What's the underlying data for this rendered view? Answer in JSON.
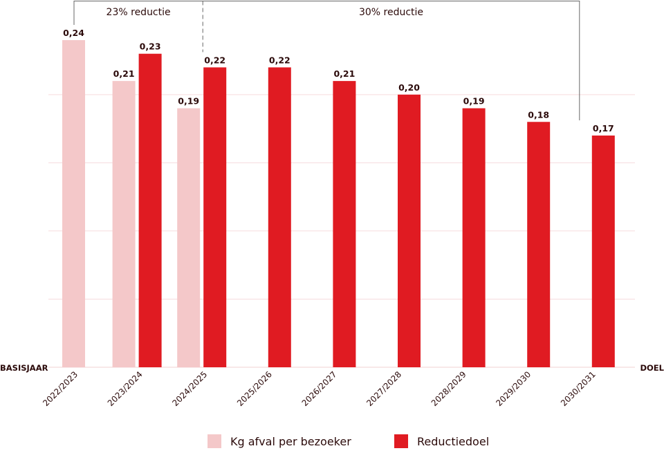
{
  "chart_data": {
    "type": "bar",
    "categories": [
      "2022/2023",
      "2023/2024",
      "2024/2025",
      "2025/2026",
      "2026/2027",
      "2027/2028",
      "2028/2029",
      "2029/2030",
      "2030/2031"
    ],
    "series": [
      {
        "name": "Kg afval per bezoeker",
        "color": "#f4c8c9",
        "values": [
          0.24,
          0.21,
          0.19,
          null,
          null,
          null,
          null,
          null,
          null
        ],
        "labels": [
          "0,24",
          "0,21",
          "0,19",
          "",
          "",
          "",
          "",
          "",
          ""
        ]
      },
      {
        "name": "Reductiedoel",
        "color": "#e01b22",
        "values": [
          null,
          0.23,
          0.22,
          0.22,
          0.21,
          0.2,
          0.19,
          0.18,
          0.17
        ],
        "labels": [
          "",
          "0,23",
          "0,22",
          "0,22",
          "0,21",
          "0,20",
          "0,19",
          "0,18",
          "0,17"
        ]
      }
    ],
    "ylim": [
      0,
      0.24
    ],
    "grid": true,
    "legend_placement": "bottom",
    "left_label": "BASISJAAR",
    "right_label": "DOEL",
    "annotations": [
      {
        "text": "23% reductie",
        "from": "2022/2023",
        "to": "2024/2025"
      },
      {
        "text": "30% reductie",
        "from": "2024/2025",
        "to": "2030/2031"
      }
    ]
  }
}
